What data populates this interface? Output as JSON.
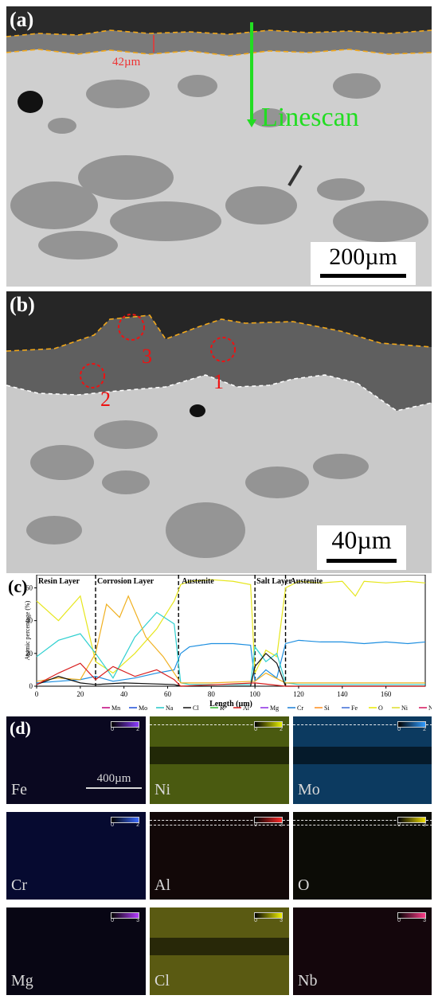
{
  "panel_a": {
    "label": "(a)",
    "thickness_label": "42µm",
    "linescan_label": "Linescan",
    "scale_bar": "200µm"
  },
  "panel_b": {
    "label": "(b)",
    "points": [
      "1",
      "2",
      "3"
    ],
    "scale_bar": "40µm"
  },
  "panel_c": {
    "label": "(c)",
    "regions": [
      "Resin Layer",
      "Corrosion Layer",
      "Austenite",
      "Salt Layer",
      "Austenite"
    ],
    "chart_data": {
      "type": "line",
      "xlabel": "Length (µm)",
      "ylabel": "Atomic percentage (%)",
      "xlim": [
        0,
        178
      ],
      "ylim": [
        0,
        68
      ],
      "x_ticks": [
        "0",
        "20",
        "40",
        "60",
        "80",
        "100",
        "120",
        "140",
        "160"
      ],
      "y_ticks": [
        "0",
        "20",
        "40",
        "60"
      ],
      "boundaries": [
        27,
        65,
        100,
        114
      ],
      "legend": [
        "Mn",
        "Mo",
        "Na",
        "Cl",
        "K",
        "Al",
        "Mg",
        "Cr",
        "Si",
        "Fe",
        "O",
        "Ni",
        "Nb"
      ],
      "legend_colors": [
        "#c0007a",
        "#1e4fd8",
        "#22c7c7",
        "#111111",
        "#2fb82f",
        "#d81e1e",
        "#8a2be2",
        "#1a7fd6",
        "#ff8c1a",
        "#3c6bd6",
        "#e8e800",
        "#dede2a",
        "#d4145a"
      ],
      "series": [
        {
          "name": "Ni",
          "color": "#e6e61c",
          "x": [
            0,
            10,
            20,
            27,
            35,
            45,
            55,
            63,
            66,
            70,
            80,
            90,
            98,
            100,
            105,
            110,
            114,
            120,
            130,
            140,
            146,
            150,
            160,
            170,
            178
          ],
          "y": [
            52,
            40,
            55,
            15,
            8,
            20,
            35,
            52,
            62,
            64,
            65,
            64,
            62,
            8,
            22,
            18,
            60,
            64,
            63,
            64,
            55,
            64,
            63,
            64,
            63
          ]
        },
        {
          "name": "Mo",
          "color": "#1e8fe0",
          "x": [
            0,
            10,
            20,
            27,
            35,
            45,
            55,
            63,
            66,
            70,
            80,
            90,
            98,
            100,
            105,
            110,
            114,
            120,
            130,
            140,
            150,
            160,
            170,
            178
          ],
          "y": [
            2,
            3,
            4,
            6,
            3,
            5,
            8,
            10,
            20,
            24,
            26,
            26,
            25,
            3,
            10,
            5,
            26,
            28,
            27,
            27,
            26,
            27,
            26,
            27
          ]
        },
        {
          "name": "Na",
          "color": "#30d0d0",
          "x": [
            0,
            10,
            20,
            27,
            35,
            45,
            55,
            63,
            66,
            70,
            80,
            90,
            98,
            100,
            105,
            110,
            114,
            120,
            140,
            160,
            178
          ],
          "y": [
            18,
            28,
            32,
            20,
            5,
            30,
            45,
            38,
            2,
            1,
            1,
            1,
            1,
            24,
            15,
            20,
            2,
            1,
            1,
            1,
            1
          ]
        },
        {
          "name": "O",
          "color": "#f0b020",
          "x": [
            0,
            10,
            20,
            27,
            32,
            38,
            42,
            50,
            58,
            63,
            66,
            80,
            100,
            105,
            114,
            140,
            178
          ],
          "y": [
            3,
            5,
            4,
            20,
            50,
            42,
            55,
            30,
            18,
            8,
            2,
            2,
            3,
            8,
            2,
            2,
            2
          ]
        },
        {
          "name": "Cl",
          "color": "#111111",
          "x": [
            0,
            10,
            20,
            27,
            40,
            63,
            66,
            80,
            98,
            100,
            105,
            110,
            114,
            140,
            178
          ],
          "y": [
            1,
            6,
            2,
            1,
            2,
            1,
            0,
            0,
            0,
            12,
            20,
            14,
            0,
            0,
            0
          ]
        },
        {
          "name": "Al",
          "color": "#d81e1e",
          "x": [
            0,
            10,
            20,
            27,
            35,
            45,
            55,
            63,
            66,
            100,
            114,
            178
          ],
          "y": [
            1,
            8,
            14,
            4,
            12,
            6,
            10,
            4,
            0,
            2,
            0,
            0
          ]
        }
      ]
    }
  },
  "panel_d": {
    "label": "(d)",
    "scale_bar": "400µm",
    "maps": [
      {
        "element": "Fe",
        "cbar_max": "2"
      },
      {
        "element": "Ni",
        "cbar_max": "2"
      },
      {
        "element": "Mo",
        "cbar_max": "2"
      },
      {
        "element": "Cr",
        "cbar_max": "2"
      },
      {
        "element": "Al",
        "cbar_max": "3"
      },
      {
        "element": "O",
        "cbar_max": "3"
      },
      {
        "element": "Mg",
        "cbar_max": "3"
      },
      {
        "element": "Cl",
        "cbar_max": "3"
      },
      {
        "element": "Nb",
        "cbar_max": "3"
      }
    ],
    "cbar_min": "0"
  }
}
